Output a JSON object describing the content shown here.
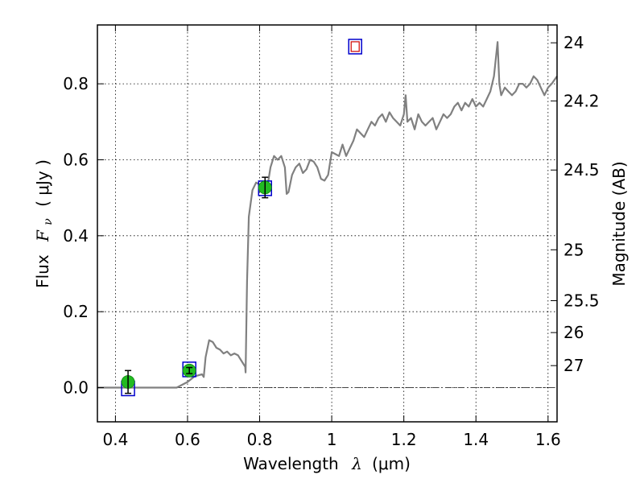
{
  "chart_data": {
    "type": "line",
    "xlim": [
      0.35,
      1.625
    ],
    "ylim": [
      -0.09,
      0.955
    ],
    "xticks": [
      0.4,
      0.6,
      0.8,
      1.0,
      1.2,
      1.4,
      1.6
    ],
    "xtick_labels": [
      "0.4",
      "0.6",
      "0.8",
      "1",
      "1.2",
      "1.4",
      "1.6"
    ],
    "yticks": [
      0.0,
      0.2,
      0.4,
      0.6,
      0.8
    ],
    "ytick_labels": [
      "0.0",
      "0.2",
      "0.4",
      "0.6",
      "0.8"
    ],
    "xlabel": {
      "prefix": "Wavelength",
      "symbol": "λ",
      "unit": "(μm)"
    },
    "ylabel": {
      "prefix": "Flux",
      "symbol": "F",
      "subscript": "ν",
      "unit": "( μJy )"
    },
    "right_axis": {
      "label": "Magnitude (AB)",
      "ticks": [
        {
          "label": "24",
          "flux": 0.908
        },
        {
          "label": "24.2",
          "flux": 0.755
        },
        {
          "label": "24.5",
          "flux": 0.573
        },
        {
          "label": "25",
          "flux": 0.363
        },
        {
          "label": "25.5",
          "flux": 0.229
        },
        {
          "label": "26",
          "flux": 0.145
        },
        {
          "label": "27",
          "flux": 0.058
        }
      ]
    },
    "grid": true,
    "zero_line": true,
    "spectrum": {
      "color": "#808080",
      "x": [
        0.35,
        0.4,
        0.45,
        0.5,
        0.55,
        0.57,
        0.6,
        0.62,
        0.64,
        0.645,
        0.65,
        0.66,
        0.67,
        0.68,
        0.69,
        0.7,
        0.71,
        0.72,
        0.73,
        0.74,
        0.75,
        0.76,
        0.761,
        0.765,
        0.77,
        0.78,
        0.79,
        0.8,
        0.81,
        0.82,
        0.83,
        0.84,
        0.85,
        0.86,
        0.87,
        0.875,
        0.88,
        0.89,
        0.9,
        0.91,
        0.92,
        0.93,
        0.94,
        0.95,
        0.96,
        0.97,
        0.98,
        0.99,
        1.0,
        1.01,
        1.02,
        1.03,
        1.04,
        1.05,
        1.06,
        1.07,
        1.08,
        1.09,
        1.1,
        1.11,
        1.12,
        1.13,
        1.14,
        1.15,
        1.16,
        1.17,
        1.18,
        1.19,
        1.2,
        1.205,
        1.21,
        1.22,
        1.23,
        1.24,
        1.25,
        1.26,
        1.27,
        1.28,
        1.29,
        1.3,
        1.31,
        1.32,
        1.33,
        1.34,
        1.35,
        1.36,
        1.37,
        1.38,
        1.39,
        1.4,
        1.41,
        1.42,
        1.43,
        1.44,
        1.45,
        1.46,
        1.465,
        1.47,
        1.48,
        1.49,
        1.5,
        1.51,
        1.52,
        1.53,
        1.54,
        1.55,
        1.56,
        1.57,
        1.58,
        1.59,
        1.6,
        1.61,
        1.625
      ],
      "y": [
        0.0,
        0.0,
        0.0,
        0.0,
        0.0,
        0.0,
        0.015,
        0.03,
        0.035,
        0.028,
        0.08,
        0.125,
        0.12,
        0.105,
        0.1,
        0.09,
        0.095,
        0.085,
        0.09,
        0.085,
        0.07,
        0.055,
        0.04,
        0.28,
        0.45,
        0.52,
        0.54,
        0.535,
        0.53,
        0.52,
        0.58,
        0.61,
        0.6,
        0.61,
        0.58,
        0.51,
        0.515,
        0.56,
        0.58,
        0.59,
        0.565,
        0.575,
        0.6,
        0.595,
        0.58,
        0.55,
        0.545,
        0.56,
        0.62,
        0.615,
        0.61,
        0.64,
        0.61,
        0.63,
        0.65,
        0.68,
        0.67,
        0.66,
        0.68,
        0.7,
        0.69,
        0.71,
        0.72,
        0.7,
        0.725,
        0.71,
        0.7,
        0.69,
        0.72,
        0.77,
        0.7,
        0.71,
        0.68,
        0.72,
        0.7,
        0.69,
        0.7,
        0.71,
        0.68,
        0.7,
        0.72,
        0.71,
        0.72,
        0.74,
        0.75,
        0.73,
        0.75,
        0.74,
        0.76,
        0.74,
        0.75,
        0.74,
        0.76,
        0.78,
        0.82,
        0.91,
        0.8,
        0.77,
        0.79,
        0.78,
        0.77,
        0.78,
        0.8,
        0.8,
        0.79,
        0.8,
        0.82,
        0.81,
        0.79,
        0.77,
        0.79,
        0.8,
        0.82
      ]
    },
    "measured_points": {
      "color": "#22bb22",
      "x": [
        0.435,
        0.605,
        0.815
      ],
      "y": [
        0.015,
        0.045,
        0.527
      ],
      "yerr": [
        0.03,
        0.008,
        0.027
      ]
    },
    "model_points": {
      "edge_color": "#0000cc",
      "x": [
        0.435,
        0.605,
        0.815
      ],
      "y": [
        -0.002,
        0.048,
        0.525
      ]
    },
    "upper_limit_point": {
      "edge_color": "#0000cc",
      "inner_color": "#cc0000",
      "x": 1.065,
      "y": 0.898
    }
  }
}
